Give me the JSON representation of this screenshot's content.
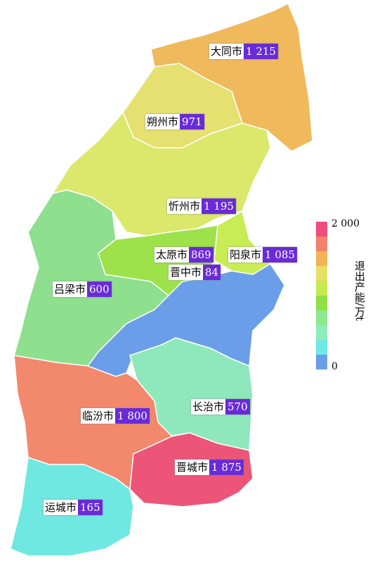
{
  "regions": [
    {
      "name": "大同市",
      "value": "1 215"
    },
    {
      "name": "朔州市",
      "value": "971"
    },
    {
      "name": "忻州市",
      "value": "1 195"
    },
    {
      "name": "太原市",
      "value": "869"
    },
    {
      "name": "阳泉市",
      "value": "1 085"
    },
    {
      "name": "晋中市",
      "value": "84"
    },
    {
      "name": "吕梁市",
      "value": "600"
    },
    {
      "name": "临汾市",
      "value": "1 800"
    },
    {
      "name": "长治市",
      "value": "570"
    },
    {
      "name": "晋城市",
      "value": "1 875"
    },
    {
      "name": "运城市",
      "value": "165"
    }
  ],
  "legend": {
    "title": "退出产能/万t",
    "max": "2 000",
    "min": "0"
  }
}
